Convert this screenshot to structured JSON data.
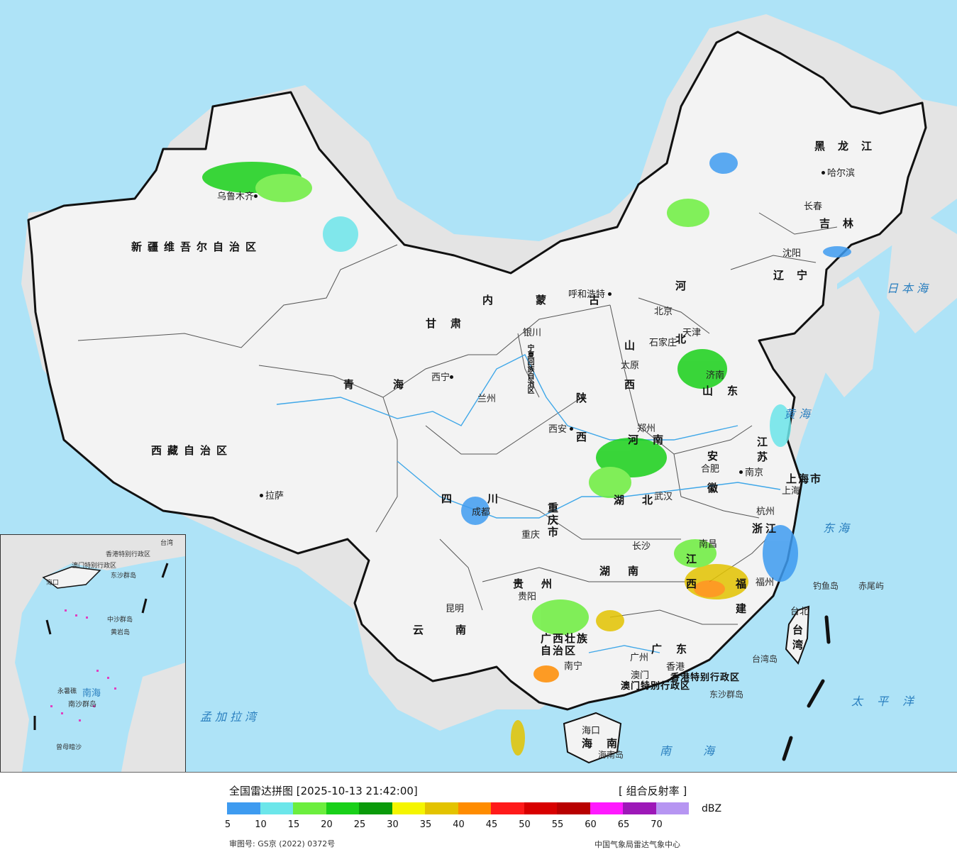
{
  "colors": {
    "ocean": "#aee3f7",
    "neighbor_land": "#e4e4e4",
    "china_land": "#f3f3f3",
    "border": "#111111",
    "river": "#3fa7e8"
  },
  "legend": {
    "title": "全国雷达拼图 [2025-10-13 21:42:00]",
    "product": "[ 组合反射率 ]",
    "unit": "dBZ",
    "colors": [
      "#3e9bf0",
      "#6ce6ea",
      "#6cee3e",
      "#19d019",
      "#0a9a0a",
      "#f5f500",
      "#e3c300",
      "#ff8c00",
      "#ff1a1a",
      "#d80000",
      "#b80000",
      "#ff19ff",
      "#9d18b8",
      "#b695f2"
    ],
    "ticks": [
      "5",
      "10",
      "15",
      "20",
      "25",
      "30",
      "35",
      "40",
      "45",
      "50",
      "55",
      "60",
      "65",
      "70"
    ],
    "review_number": "审图号: GS京 (2022) 0372号",
    "organization": "中国气象局雷达气象中心"
  },
  "provinces": [
    {
      "name": "新疆维吾尔自治区"
    },
    {
      "name": "西藏自治区"
    },
    {
      "name": "青海"
    },
    {
      "name": "甘肃"
    },
    {
      "name": "内蒙古"
    },
    {
      "name": "黑龙江"
    },
    {
      "name": "吉林"
    },
    {
      "name": "辽宁"
    },
    {
      "name": "河北"
    },
    {
      "name": "山西"
    },
    {
      "name": "陕西"
    },
    {
      "name": "山东"
    },
    {
      "name": "河南"
    },
    {
      "name": "江苏"
    },
    {
      "name": "安徽"
    },
    {
      "name": "湖北"
    },
    {
      "name": "四川"
    },
    {
      "name": "重庆市"
    },
    {
      "name": "浙江"
    },
    {
      "name": "湖南"
    },
    {
      "name": "江西"
    },
    {
      "name": "福建"
    },
    {
      "name": "贵州"
    },
    {
      "name": "云南"
    },
    {
      "name": "广西壮族自治区"
    },
    {
      "name": "广东"
    },
    {
      "name": "海南"
    },
    {
      "name": "台湾"
    },
    {
      "name": "上海市"
    },
    {
      "name": "宁夏回族自治区"
    },
    {
      "name": "香港特别行政区"
    },
    {
      "name": "澳门特别行政区"
    }
  ],
  "cities": [
    "乌鲁木齐",
    "拉萨",
    "西宁",
    "兰州",
    "银川",
    "呼和浩特",
    "北京",
    "天津",
    "石家庄",
    "太原",
    "西安",
    "郑州",
    "济南",
    "合肥",
    "南京",
    "上海",
    "杭州",
    "武汉",
    "成都",
    "重庆",
    "长沙",
    "南昌",
    "福州",
    "贵阳",
    "昆明",
    "南宁",
    "广州",
    "香港",
    "澳门",
    "海口",
    "沈阳",
    "长春",
    "哈尔滨",
    "台北"
  ],
  "seas": [
    "日本海",
    "黄海",
    "东海",
    "太平洋",
    "南海",
    "孟加拉湾"
  ],
  "islands": [
    "钓鱼岛",
    "赤尾屿",
    "台湾岛",
    "东沙群岛",
    "海南岛"
  ],
  "inset": {
    "labels": [
      "南海",
      "中沙群岛",
      "黄岩岛",
      "永暑礁",
      "南沙群岛",
      "曾母暗沙",
      "东沙群岛",
      "海口",
      "台湾",
      "香港特别行政区",
      "澳门特别行政区"
    ]
  }
}
